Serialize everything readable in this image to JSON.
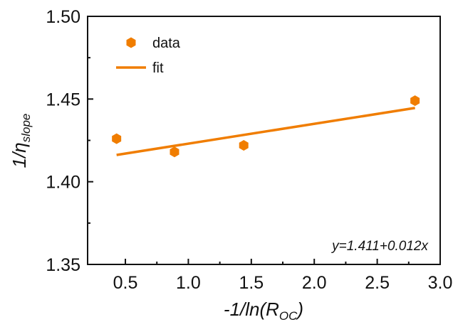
{
  "chart_data": {
    "type": "scatter",
    "x_range": [
      0.2,
      3.0
    ],
    "ylim": [
      1.35,
      1.5
    ],
    "x_ticks": [
      "0.5",
      "1.0",
      "1.5",
      "2.0",
      "2.5",
      "3.0"
    ],
    "y_ticks": [
      "1.35",
      "1.40",
      "1.45",
      "1.50"
    ],
    "x_tick_values": [
      0.5,
      1.0,
      1.5,
      2.0,
      2.5,
      3.0
    ],
    "y_tick_values": [
      1.35,
      1.4,
      1.45,
      1.5
    ],
    "xlabel": {
      "pre": "-1/ln(R",
      "sub": "OC",
      "post": ")"
    },
    "ylabel": {
      "pre": "1/η",
      "sub": "slope"
    },
    "grid": false,
    "legend_position": "top-left",
    "series": [
      {
        "name": "data",
        "kind": "scatter",
        "marker": "hexagon",
        "color": "#f07d00",
        "x": [
          0.43,
          0.89,
          1.44,
          2.8
        ],
        "y": [
          1.426,
          1.418,
          1.422,
          1.449
        ]
      },
      {
        "name": "fit",
        "kind": "line",
        "color": "#f07d00",
        "x": [
          0.43,
          2.8
        ],
        "y": [
          1.4162,
          1.4446
        ]
      }
    ],
    "annotation": "y=1.411+0.012x"
  }
}
